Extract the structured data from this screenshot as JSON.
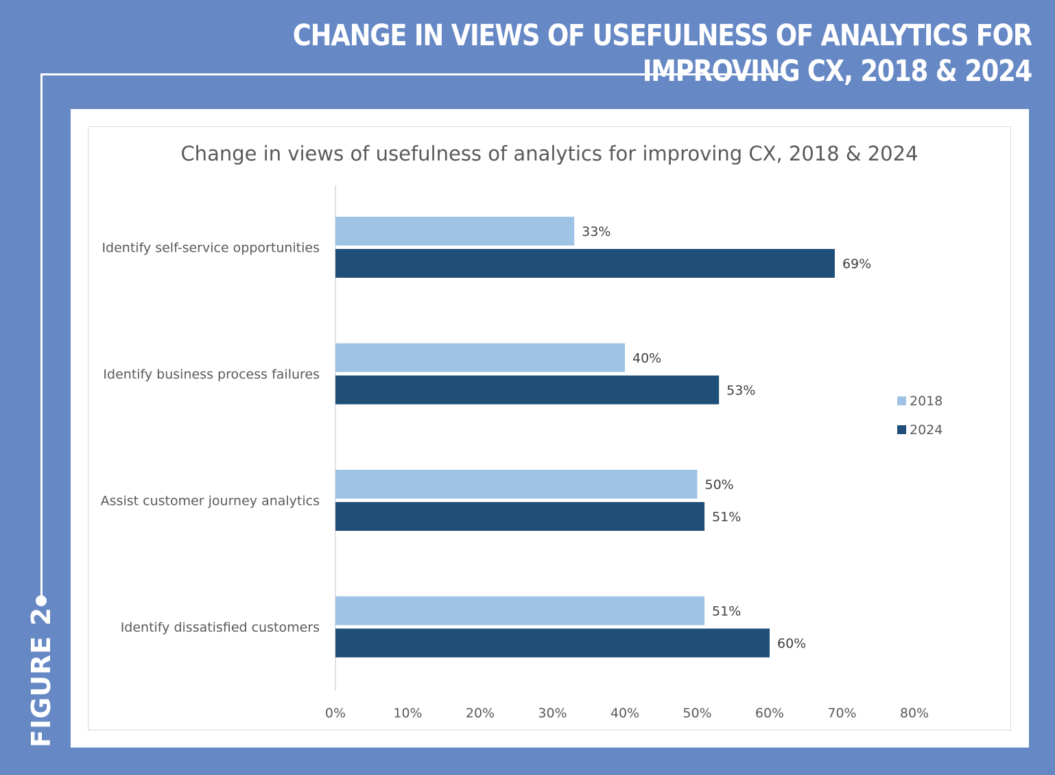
{
  "header": {
    "title": "CHANGE IN VIEWS OF USEFULNESS OF ANALYTICS FOR IMPROVING CX, 2018 & 2024",
    "figure_label": "FIGURE 2"
  },
  "chart_data": {
    "type": "bar",
    "orientation": "horizontal",
    "title": "Change in views of usefulness of analytics for improving CX, 2018 & 2024",
    "categories": [
      "Identify self-service opportunities",
      "Identify business process failures",
      "Assist customer journey analytics",
      "Identify dissatisfied customers"
    ],
    "series": [
      {
        "name": "2018",
        "values": [
          33,
          40,
          50,
          51
        ],
        "labels": [
          "33%",
          "40%",
          "50%",
          "51%"
        ],
        "color": "#9fc3e4"
      },
      {
        "name": "2024",
        "values": [
          69,
          53,
          51,
          60
        ],
        "labels": [
          "69%",
          "53%",
          "51%",
          "60%"
        ],
        "color": "#1f4e79"
      }
    ],
    "xlim": [
      0,
      80
    ],
    "xticks": [
      "0%",
      "10%",
      "20%",
      "30%",
      "40%",
      "50%",
      "60%",
      "70%",
      "80%"
    ],
    "grid": false,
    "legend": "right"
  }
}
